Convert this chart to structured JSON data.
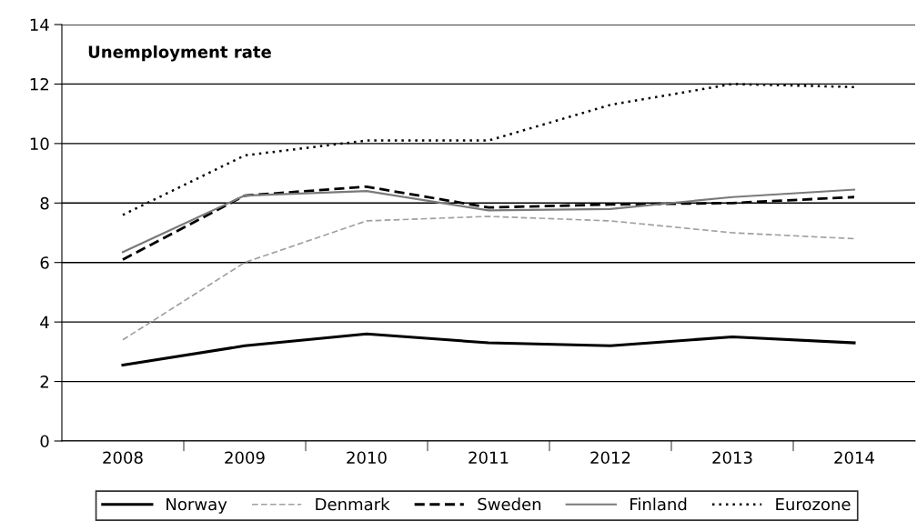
{
  "chart_data": {
    "type": "line",
    "title": "Unemployment rate",
    "categories": [
      "2008",
      "2009",
      "2010",
      "2011",
      "2012",
      "2013",
      "2014"
    ],
    "series": [
      {
        "name": "Norway",
        "color": "#000000",
        "line_style": "solid",
        "values": [
          2.55,
          3.2,
          3.6,
          3.3,
          3.2,
          3.5,
          3.3
        ]
      },
      {
        "name": "Denmark",
        "color": "#a0a0a0",
        "line_style": "dashed",
        "values": [
          3.4,
          6.0,
          7.4,
          7.55,
          7.4,
          7.0,
          6.8
        ]
      },
      {
        "name": "Sweden",
        "color": "#000000",
        "line_style": "dashed",
        "values": [
          6.1,
          8.25,
          8.55,
          7.85,
          7.95,
          8.0,
          8.2
        ]
      },
      {
        "name": "Finland",
        "color": "#7a7a7a",
        "line_style": "solid",
        "values": [
          6.35,
          8.25,
          8.4,
          7.75,
          7.8,
          8.2,
          8.45
        ]
      },
      {
        "name": "Eurozone",
        "color": "#000000",
        "line_style": "dotted",
        "values": [
          7.6,
          9.6,
          10.1,
          10.1,
          11.3,
          12.0,
          11.9
        ]
      }
    ],
    "ylim": [
      0,
      14
    ],
    "yticks": [
      0,
      2,
      4,
      6,
      8,
      10,
      12,
      14
    ],
    "grid": "y",
    "legend": "bottom",
    "marker": "none"
  }
}
